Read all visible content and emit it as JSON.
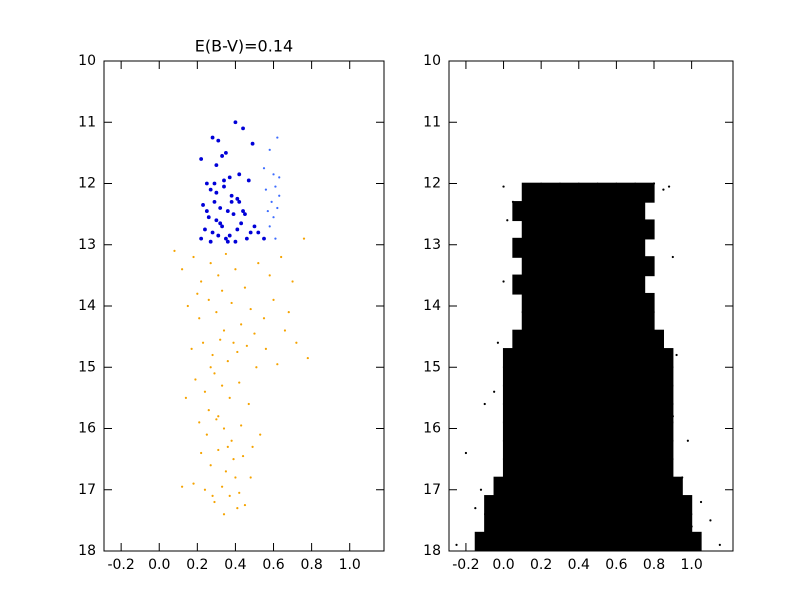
{
  "chart_data": [
    {
      "type": "scatter",
      "title": "E(B-V)=0.14",
      "xlim": [
        -0.29,
        1.18
      ],
      "ylim": [
        10,
        18
      ],
      "y_inverted": true,
      "xticks": [
        -0.2,
        {
          "value": 0.0,
          "label": "0.0"
        },
        0.2,
        0.4,
        0.6,
        0.8,
        {
          "value": 1.0,
          "label": "1.0"
        }
      ],
      "yticks": [
        10,
        11,
        12,
        13,
        14,
        15,
        16,
        17,
        18
      ],
      "series": [
        {
          "color": "#0000d8",
          "marker": "point",
          "x": [
            0.28,
            0.31,
            0.35,
            0.4,
            0.44,
            0.22,
            0.3,
            0.33,
            0.37,
            0.25,
            0.42,
            0.47,
            0.27,
            0.34,
            0.38,
            0.29,
            0.23,
            0.32,
            0.41,
            0.45,
            0.36,
            0.26,
            0.3,
            0.39,
            0.43,
            0.5,
            0.24,
            0.28,
            0.33,
            0.37,
            0.41,
            0.46,
            0.52,
            0.22,
            0.27,
            0.31,
            0.35,
            0.29,
            0.4,
            0.48,
            0.25,
            0.3,
            0.34,
            0.38,
            0.44,
            0.55,
            0.32,
            0.42,
            0.49,
            0.36
          ],
          "y": [
            11.25,
            11.3,
            11.5,
            11.0,
            11.1,
            11.6,
            11.7,
            11.55,
            11.9,
            12.0,
            11.85,
            11.95,
            12.1,
            12.05,
            12.2,
            12.3,
            12.35,
            12.4,
            12.25,
            12.5,
            12.45,
            12.55,
            12.6,
            12.5,
            12.65,
            12.7,
            12.75,
            12.8,
            12.7,
            12.85,
            12.75,
            12.9,
            12.8,
            12.9,
            12.95,
            12.85,
            12.9,
            12.0,
            12.95,
            12.8,
            12.45,
            12.15,
            11.95,
            12.3,
            12.45,
            12.9,
            12.65,
            12.3,
            11.35,
            12.95
          ]
        },
        {
          "color": "#3d6cff",
          "marker": "pixel",
          "x": [
            0.62,
            0.58,
            0.6,
            0.63,
            0.56,
            0.61,
            0.59,
            0.62,
            0.57,
            0.6,
            0.63,
            0.58,
            0.61,
            0.55
          ],
          "y": [
            11.25,
            11.45,
            11.85,
            11.9,
            12.1,
            12.05,
            12.3,
            12.4,
            12.45,
            12.55,
            12.2,
            12.7,
            12.9,
            11.75
          ]
        },
        {
          "color": "#f5a300",
          "marker": "pixel",
          "x": [
            0.08,
            0.12,
            0.18,
            0.22,
            0.27,
            0.31,
            0.35,
            0.4,
            0.45,
            0.52,
            0.58,
            0.64,
            0.7,
            0.76,
            0.15,
            0.21,
            0.26,
            0.3,
            0.34,
            0.38,
            0.43,
            0.48,
            0.55,
            0.6,
            0.66,
            0.72,
            0.78,
            0.17,
            0.23,
            0.28,
            0.32,
            0.36,
            0.41,
            0.46,
            0.51,
            0.62,
            0.68,
            0.19,
            0.24,
            0.29,
            0.33,
            0.37,
            0.42,
            0.47,
            0.14,
            0.26,
            0.21,
            0.25,
            0.3,
            0.34,
            0.38,
            0.43,
            0.49,
            0.53,
            0.22,
            0.27,
            0.31,
            0.35,
            0.39,
            0.44,
            0.48,
            0.18,
            0.24,
            0.29,
            0.33,
            0.37,
            0.41,
            0.45,
            0.12,
            0.34,
            0.42,
            0.2,
            0.33,
            0.39,
            0.27,
            0.31,
            0.36,
            0.4,
            0.28,
            0.5,
            0.56
          ],
          "y": [
            13.1,
            13.4,
            13.2,
            13.6,
            13.3,
            13.5,
            13.15,
            13.4,
            13.7,
            13.3,
            13.5,
            13.2,
            13.6,
            12.9,
            14.0,
            14.2,
            13.9,
            14.1,
            14.4,
            13.95,
            14.3,
            14.05,
            14.2,
            13.9,
            14.4,
            14.6,
            14.85,
            14.7,
            14.6,
            14.8,
            14.55,
            14.9,
            14.75,
            14.65,
            15.0,
            14.95,
            14.1,
            15.2,
            15.4,
            15.1,
            15.3,
            15.5,
            15.25,
            15.6,
            15.5,
            15.7,
            15.9,
            16.1,
            15.85,
            16.0,
            16.2,
            15.95,
            16.3,
            16.1,
            16.4,
            16.6,
            16.35,
            16.7,
            16.5,
            16.45,
            16.8,
            16.9,
            17.0,
            17.2,
            16.95,
            17.1,
            17.3,
            17.25,
            16.95,
            17.4,
            17.05,
            13.8,
            13.75,
            14.6,
            15.0,
            15.8,
            16.3,
            16.8,
            17.1,
            14.45,
            14.7
          ]
        }
      ]
    },
    {
      "type": "scatter",
      "xlim": [
        -0.29,
        1.22
      ],
      "ylim": [
        10,
        18
      ],
      "y_inverted": true,
      "xticks": [
        -0.2,
        {
          "value": 0.0,
          "label": "0.0"
        },
        0.2,
        0.4,
        0.6,
        0.8,
        {
          "value": 1.0,
          "label": "1.0"
        }
      ],
      "yticks": [
        10,
        11,
        12,
        13,
        14,
        15,
        16,
        17,
        18
      ],
      "series": [
        {
          "color": "#000000",
          "marker": "block",
          "x": [
            0.15,
            0.25,
            0.35,
            0.45,
            0.55,
            0.65,
            0.75,
            0.1,
            0.2,
            0.3,
            0.4,
            0.5,
            0.6,
            0.7,
            0.15,
            0.25,
            0.35,
            0.45,
            0.55,
            0.65,
            0.75,
            0.1,
            0.2,
            0.3,
            0.4,
            0.5,
            0.6,
            0.7,
            0.15,
            0.25,
            0.35,
            0.45,
            0.55,
            0.65,
            0.75,
            0.1,
            0.2,
            0.3,
            0.4,
            0.5,
            0.6,
            0.7,
            0.15,
            0.25,
            0.35,
            0.45,
            0.55,
            0.65,
            0.75,
            0.15,
            0.25,
            0.35,
            0.45,
            0.55,
            0.65,
            0.75,
            0.1,
            0.2,
            0.3,
            0.4,
            0.5,
            0.6,
            0.7,
            0.8,
            0.05,
            0.15,
            0.25,
            0.35,
            0.45,
            0.55,
            0.65,
            0.75,
            0.85,
            0.05,
            0.15,
            0.25,
            0.35,
            0.45,
            0.55,
            0.65,
            0.75,
            0.85,
            0.05,
            0.15,
            0.25,
            0.35,
            0.45,
            0.55,
            0.65,
            0.75,
            0.85,
            0.05,
            0.15,
            0.25,
            0.35,
            0.45,
            0.55,
            0.65,
            0.75,
            0.85,
            0.05,
            0.15,
            0.25,
            0.35,
            0.45,
            0.55,
            0.65,
            0.75,
            0.85,
            0.05,
            0.15,
            0.25,
            0.35,
            0.45,
            0.55,
            0.65,
            0.75,
            0.85,
            0.05,
            0.15,
            0.25,
            0.35,
            0.45,
            0.55,
            0.65,
            0.75,
            0.85,
            0.0,
            0.1,
            0.2,
            0.3,
            0.4,
            0.5,
            0.6,
            0.7,
            0.8,
            0.9,
            -0.05,
            0.05,
            0.15,
            0.25,
            0.35,
            0.45,
            0.55,
            0.65,
            0.75,
            0.85,
            0.95,
            -0.05,
            0.05,
            0.15,
            0.25,
            0.35,
            0.45,
            0.55,
            0.65,
            0.75,
            0.85,
            0.95,
            -0.1,
            0.0,
            0.1,
            0.2,
            0.3,
            0.4,
            0.5,
            0.6,
            0.7,
            0.8,
            0.9,
            1.0
          ],
          "y": [
            12.15,
            12.15,
            12.15,
            12.15,
            12.15,
            12.15,
            12.15,
            12.45,
            12.45,
            12.45,
            12.45,
            12.45,
            12.45,
            12.45,
            12.75,
            12.75,
            12.75,
            12.75,
            12.75,
            12.75,
            12.75,
            13.05,
            13.05,
            13.05,
            13.05,
            13.05,
            13.05,
            13.05,
            13.35,
            13.35,
            13.35,
            13.35,
            13.35,
            13.35,
            13.35,
            13.65,
            13.65,
            13.65,
            13.65,
            13.65,
            13.65,
            13.65,
            13.95,
            13.95,
            13.95,
            13.95,
            13.95,
            13.95,
            13.95,
            14.25,
            14.25,
            14.25,
            14.25,
            14.25,
            14.25,
            14.25,
            14.55,
            14.55,
            14.55,
            14.55,
            14.55,
            14.55,
            14.55,
            14.55,
            14.85,
            14.85,
            14.85,
            14.85,
            14.85,
            14.85,
            14.85,
            14.85,
            14.85,
            15.15,
            15.15,
            15.15,
            15.15,
            15.15,
            15.15,
            15.15,
            15.15,
            15.15,
            15.45,
            15.45,
            15.45,
            15.45,
            15.45,
            15.45,
            15.45,
            15.45,
            15.45,
            15.75,
            15.75,
            15.75,
            15.75,
            15.75,
            15.75,
            15.75,
            15.75,
            15.75,
            16.05,
            16.05,
            16.05,
            16.05,
            16.05,
            16.05,
            16.05,
            16.05,
            16.05,
            16.35,
            16.35,
            16.35,
            16.35,
            16.35,
            16.35,
            16.35,
            16.35,
            16.35,
            16.65,
            16.65,
            16.65,
            16.65,
            16.65,
            16.65,
            16.65,
            16.65,
            16.65,
            16.95,
            16.95,
            16.95,
            16.95,
            16.95,
            16.95,
            16.95,
            16.95,
            16.95,
            16.95,
            17.25,
            17.25,
            17.25,
            17.25,
            17.25,
            17.25,
            17.25,
            17.25,
            17.25,
            17.25,
            17.25,
            17.55,
            17.55,
            17.55,
            17.55,
            17.55,
            17.55,
            17.55,
            17.55,
            17.55,
            17.55,
            17.55,
            17.85,
            17.85,
            17.85,
            17.85,
            17.85,
            17.85,
            17.85,
            17.85,
            17.85,
            17.85,
            17.85,
            17.85
          ]
        },
        {
          "color": "#000000",
          "marker": "pixel",
          "x": [
            -0.15,
            -0.2,
            -0.1,
            -0.05,
            0.0,
            0.02,
            0.88,
            0.9,
            0.95,
            1.05,
            1.1,
            1.15,
            -0.25,
            -0.12,
            0.92,
            0.05,
            0.8,
            0.85,
            -0.03,
            0.98,
            1.0,
            0.0,
            -0.08,
            0.9
          ],
          "y": [
            17.3,
            16.4,
            15.6,
            15.4,
            12.05,
            12.6,
            12.05,
            13.2,
            16.8,
            17.2,
            17.5,
            17.9,
            17.9,
            17.0,
            14.8,
            12.3,
            12.0,
            12.1,
            14.6,
            16.2,
            17.6,
            13.6,
            17.7,
            15.8
          ]
        }
      ]
    }
  ]
}
